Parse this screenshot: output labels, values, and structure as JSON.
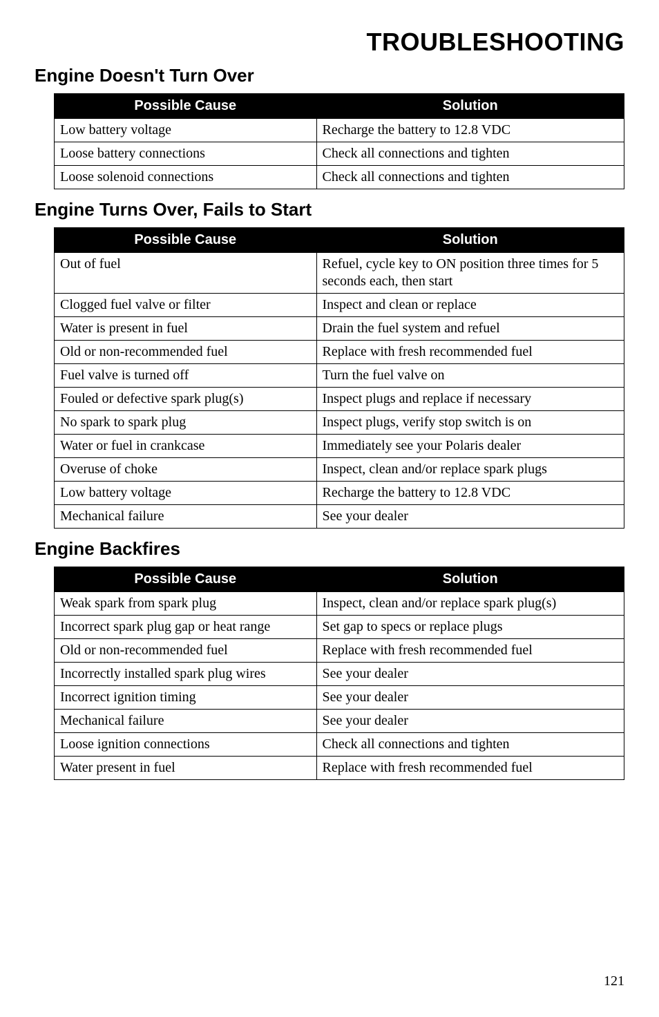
{
  "page_title": "TROUBLESHOOTING",
  "page_number": "121",
  "headers": {
    "cause": "Possible Cause",
    "solution": "Solution"
  },
  "sections": [
    {
      "title": "Engine Doesn't Turn Over",
      "rows": [
        {
          "cause": "Low battery voltage",
          "solution": "Recharge the battery to 12.8 VDC"
        },
        {
          "cause": "Loose battery connections",
          "solution": "Check all connections and tighten"
        },
        {
          "cause": "Loose solenoid connections",
          "solution": "Check all connections and tighten"
        }
      ]
    },
    {
      "title": "Engine Turns Over, Fails to Start",
      "rows": [
        {
          "cause": "Out of fuel",
          "solution": "Refuel, cycle key to ON position three times for 5 seconds each, then start"
        },
        {
          "cause": "Clogged fuel valve or filter",
          "solution": "Inspect and clean or replace"
        },
        {
          "cause": "Water is present in fuel",
          "solution": "Drain the fuel system and refuel"
        },
        {
          "cause": "Old or non-recommended fuel",
          "solution": "Replace with fresh recommended fuel"
        },
        {
          "cause": "Fuel valve is turned off",
          "solution": "Turn the fuel valve on"
        },
        {
          "cause": "Fouled or defective spark plug(s)",
          "solution": "Inspect plugs and replace if necessary"
        },
        {
          "cause": "No spark to spark plug",
          "solution": "Inspect plugs, verify stop switch is on"
        },
        {
          "cause": "Water or fuel in crankcase",
          "solution": "Immediately see your Polaris dealer"
        },
        {
          "cause": "Overuse of choke",
          "solution": "Inspect, clean and/or replace spark plugs"
        },
        {
          "cause": "Low battery voltage",
          "solution": "Recharge the battery to 12.8 VDC"
        },
        {
          "cause": "Mechanical failure",
          "solution": "See your dealer"
        }
      ]
    },
    {
      "title": "Engine Backfires",
      "rows": [
        {
          "cause": "Weak spark from spark plug",
          "solution": "Inspect, clean and/or replace spark plug(s)"
        },
        {
          "cause": "Incorrect spark plug gap or heat range",
          "solution": "Set gap to specs or replace plugs"
        },
        {
          "cause": "Old or non-recommended fuel",
          "solution": "Replace with fresh recommended fuel"
        },
        {
          "cause": "Incorrectly installed spark plug wires",
          "solution": "See your dealer"
        },
        {
          "cause": "Incorrect ignition timing",
          "solution": "See your dealer"
        },
        {
          "cause": "Mechanical failure",
          "solution": "See your dealer"
        },
        {
          "cause": "Loose ignition connections",
          "solution": "Check all connections and tighten"
        },
        {
          "cause": "Water present in fuel",
          "solution": "Replace with fresh recommended fuel"
        }
      ]
    }
  ]
}
